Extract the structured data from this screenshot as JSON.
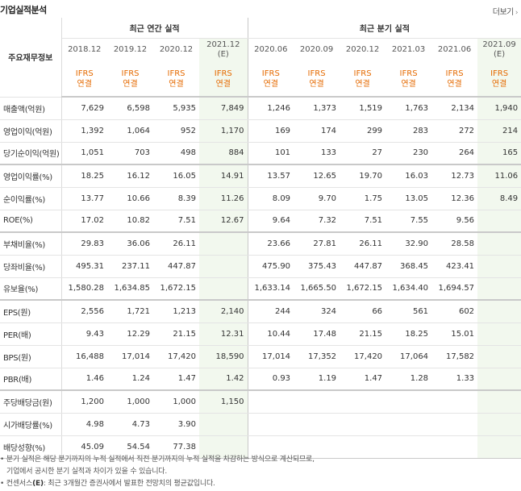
{
  "page": {
    "title": "기업실적분석",
    "more_label": "더보기"
  },
  "table": {
    "corner_label": "주요재무정보",
    "group_annual": "최근 연간 실적",
    "group_quarter": "최근 분기 실적",
    "periods": [
      {
        "date": "2018.12",
        "sub": "",
        "std": "IFRS",
        "basis": "연결",
        "estimate": false
      },
      {
        "date": "2019.12",
        "sub": "",
        "std": "IFRS",
        "basis": "연결",
        "estimate": false
      },
      {
        "date": "2020.12",
        "sub": "",
        "std": "IFRS",
        "basis": "연결",
        "estimate": false
      },
      {
        "date": "2021.12",
        "sub": "(E)",
        "std": "IFRS",
        "basis": "연결",
        "estimate": true
      },
      {
        "date": "2020.06",
        "sub": "",
        "std": "IFRS",
        "basis": "연결",
        "estimate": false
      },
      {
        "date": "2020.09",
        "sub": "",
        "std": "IFRS",
        "basis": "연결",
        "estimate": false
      },
      {
        "date": "2020.12",
        "sub": "",
        "std": "IFRS",
        "basis": "연결",
        "estimate": false
      },
      {
        "date": "2021.03",
        "sub": "",
        "std": "IFRS",
        "basis": "연결",
        "estimate": false
      },
      {
        "date": "2021.06",
        "sub": "",
        "std": "IFRS",
        "basis": "연결",
        "estimate": false
      },
      {
        "date": "2021.09",
        "sub": "(E)",
        "std": "IFRS",
        "basis": "연결",
        "estimate": true
      }
    ],
    "rows": [
      {
        "label": "매출액(억원)",
        "values": [
          "7,629",
          "6,598",
          "5,935",
          "7,849",
          "1,246",
          "1,373",
          "1,519",
          "1,763",
          "2,134",
          "1,940"
        ]
      },
      {
        "label": "영업이익(억원)",
        "values": [
          "1,392",
          "1,064",
          "952",
          "1,170",
          "169",
          "174",
          "299",
          "283",
          "272",
          "214"
        ]
      },
      {
        "label": "당기순이익(억원)",
        "values": [
          "1,051",
          "703",
          "498",
          "884",
          "101",
          "133",
          "27",
          "230",
          "264",
          "165"
        ]
      },
      {
        "label": "영업이익률(%)",
        "values": [
          "18.25",
          "16.12",
          "16.05",
          "14.91",
          "13.57",
          "12.65",
          "19.70",
          "16.03",
          "12.73",
          "11.06"
        ]
      },
      {
        "label": "순이익률(%)",
        "values": [
          "13.77",
          "10.66",
          "8.39",
          "11.26",
          "8.09",
          "9.70",
          "1.75",
          "13.05",
          "12.36",
          "8.49"
        ]
      },
      {
        "label": "ROE(%)",
        "values": [
          "17.02",
          "10.82",
          "7.51",
          "12.67",
          "9.64",
          "7.32",
          "7.51",
          "7.55",
          "9.56",
          ""
        ]
      },
      {
        "label": "부채비율(%)",
        "values": [
          "29.83",
          "36.06",
          "26.11",
          "",
          "23.66",
          "27.81",
          "26.11",
          "32.90",
          "28.58",
          ""
        ]
      },
      {
        "label": "당좌비율(%)",
        "values": [
          "495.31",
          "237.11",
          "447.87",
          "",
          "475.90",
          "375.43",
          "447.87",
          "368.45",
          "423.41",
          ""
        ]
      },
      {
        "label": "유보율(%)",
        "values": [
          "1,580.28",
          "1,634.85",
          "1,672.15",
          "",
          "1,633.14",
          "1,665.50",
          "1,672.15",
          "1,634.40",
          "1,694.57",
          ""
        ]
      },
      {
        "label": "EPS(원)",
        "values": [
          "2,556",
          "1,721",
          "1,213",
          "2,140",
          "244",
          "324",
          "66",
          "561",
          "602",
          ""
        ]
      },
      {
        "label": "PER(배)",
        "values": [
          "9.43",
          "12.29",
          "21.15",
          "12.31",
          "10.44",
          "17.48",
          "21.15",
          "18.25",
          "15.01",
          ""
        ]
      },
      {
        "label": "BPS(원)",
        "values": [
          "16,488",
          "17,014",
          "17,420",
          "18,590",
          "17,014",
          "17,352",
          "17,420",
          "17,064",
          "17,582",
          ""
        ]
      },
      {
        "label": "PBR(배)",
        "values": [
          "1.46",
          "1.24",
          "1.47",
          "1.42",
          "0.93",
          "1.19",
          "1.47",
          "1.28",
          "1.33",
          ""
        ]
      },
      {
        "label": "주당배당금(원)",
        "values": [
          "1,200",
          "1,000",
          "1,000",
          "1,150",
          "",
          "",
          "",
          "",
          "",
          ""
        ]
      },
      {
        "label": "시가배당률(%)",
        "values": [
          "4.98",
          "4.73",
          "3.90",
          "",
          "",
          "",
          "",
          "",
          "",
          ""
        ]
      },
      {
        "label": "배당성향(%)",
        "values": [
          "45.09",
          "54.54",
          "77.38",
          "",
          "",
          "",
          "",
          "",
          "",
          ""
        ]
      }
    ],
    "group_break_after": [
      2,
      5,
      8,
      12
    ]
  },
  "notes": {
    "line1": "• 분기 실적은 해당 분기까지의 누적 실적에서 직전 분기까지의 누적 실적을 차감하는 방식으로 계산되므로,",
    "line2": "기업에서 공시한 분기 실적과 차이가 있을 수 있습니다.",
    "line3_prefix": "• 컨센서스",
    "line3_mark": "(E)",
    "line3_rest": ": 최근 3개월간 증권사에서 발표한 전망치의 평균값입니다."
  }
}
